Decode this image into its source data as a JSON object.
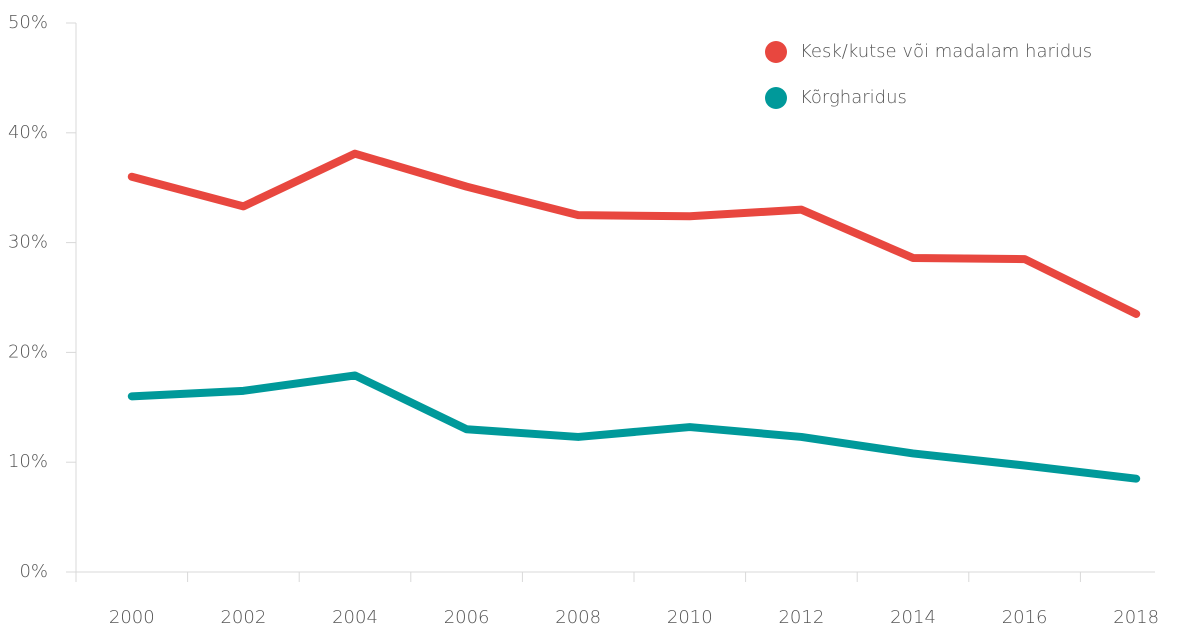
{
  "chart_data": {
    "type": "line",
    "categories": [
      "2000",
      "2002",
      "2004",
      "2006",
      "2008",
      "2010",
      "2012",
      "2014",
      "2016",
      "2018"
    ],
    "series": [
      {
        "name": "Kesk/kutse või madalam haridus",
        "color": "#e8473f",
        "values": [
          36.0,
          33.3,
          38.1,
          35.1,
          32.5,
          32.4,
          33.0,
          28.6,
          28.5,
          23.5
        ]
      },
      {
        "name": "Kõrgharidus",
        "color": "#00999a",
        "values": [
          16.0,
          16.5,
          17.9,
          13.0,
          12.3,
          13.2,
          12.3,
          10.8,
          9.7,
          8.5
        ]
      }
    ],
    "ylim": [
      0,
      50
    ],
    "yticks": [
      {
        "value": 0,
        "label": "0%"
      },
      {
        "value": 10,
        "label": "10%"
      },
      {
        "value": 20,
        "label": "20%"
      },
      {
        "value": 30,
        "label": "30%"
      },
      {
        "value": 40,
        "label": "40%"
      },
      {
        "value": 50,
        "label": "50%"
      }
    ],
    "legend": "top-right",
    "grid": false
  }
}
